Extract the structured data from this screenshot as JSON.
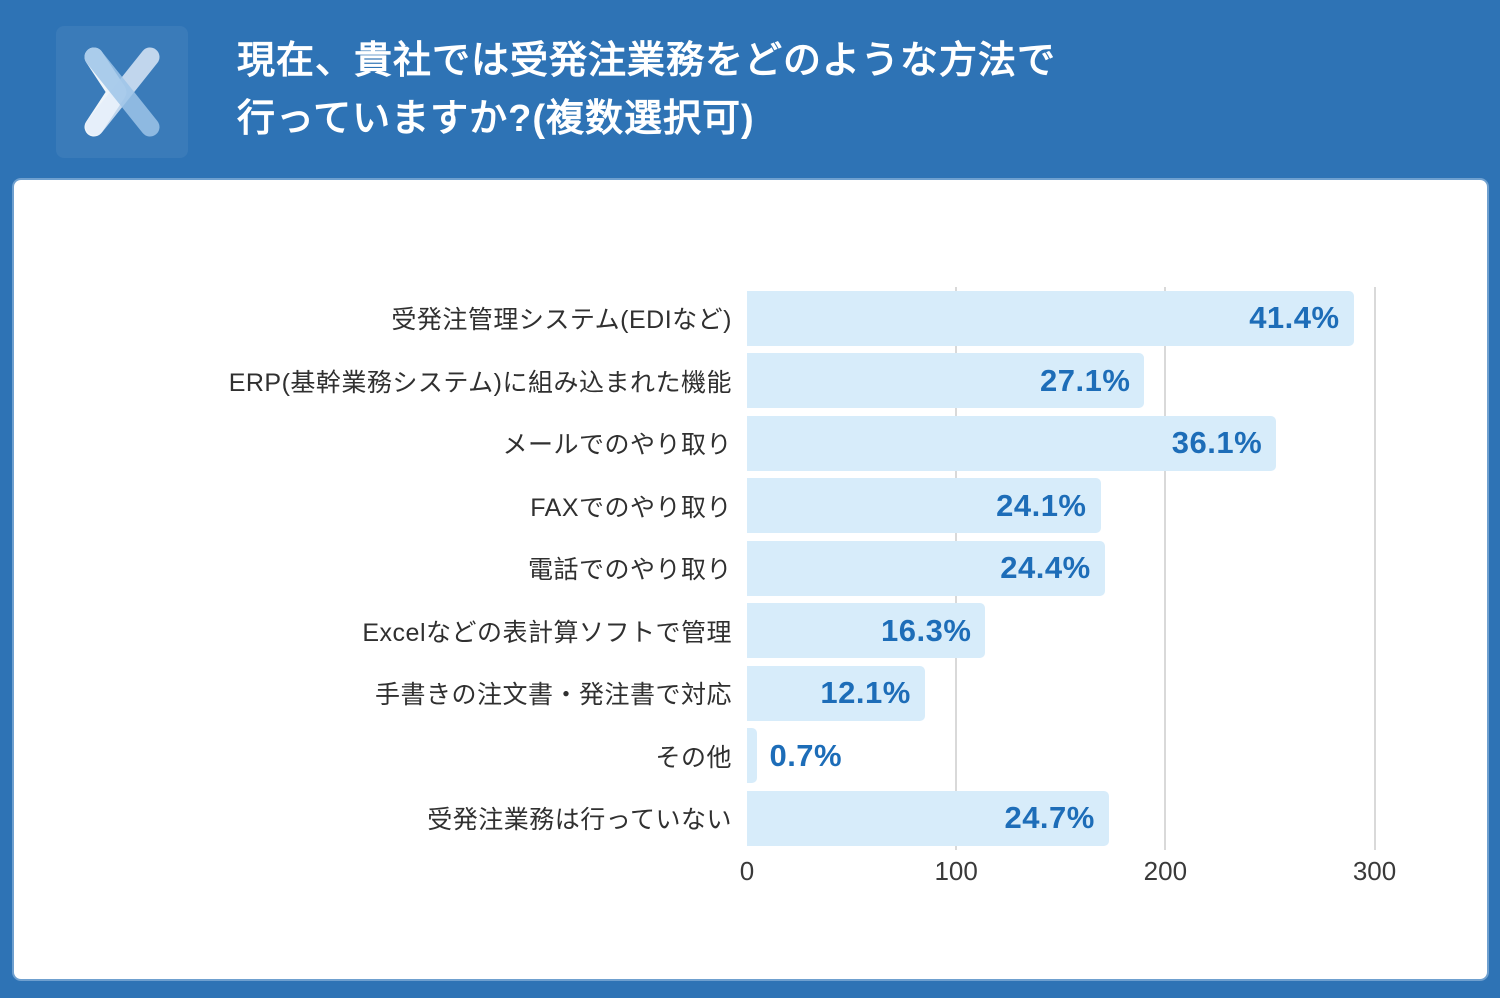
{
  "header": {
    "logo": "x-mark-logo",
    "title_line1": "現在、貴社では受発注業務をどのような方法で",
    "title_line2": "行っていますか?(複数選択可)"
  },
  "colors": {
    "page_background": "#2e73b5",
    "card_background": "#ffffff",
    "bar_fill": "#d7ecfa",
    "value_text": "#1d6db8",
    "category_text": "#303030",
    "tick_text": "#3a3a3a",
    "gridline": "#d9d9d9",
    "title_text": "#ffffff"
  },
  "chart_data": {
    "type": "bar",
    "orientation": "horizontal",
    "title": "",
    "xlabel": "",
    "ylabel": "",
    "grid": "vertical gridlines on, behind bars",
    "legend_position": "none",
    "categories": [
      "受発注管理システム(EDIなど)",
      "ERP(基幹業務システム)に組み込まれた機能",
      "メールでのやり取り",
      "FAXでのやり取り",
      "電話でのやり取り",
      "Excelなどの表計算ソフトで管理",
      "手書きの注文書・発注書で対応",
      "その他",
      "受発注業務は行っていない"
    ],
    "values_percent": [
      41.4,
      27.1,
      36.1,
      24.1,
      24.4,
      16.3,
      12.1,
      0.7,
      24.7
    ],
    "value_labels": [
      "41.4%",
      "27.1%",
      "36.1%",
      "24.1%",
      "24.4%",
      "16.3%",
      "12.1%",
      "0.7%",
      "24.7%"
    ],
    "bar_lengths_axis_units": [
      290,
      190,
      253,
      169,
      171,
      114,
      85,
      5,
      173
    ],
    "x_ticks": [
      0,
      100,
      200,
      300
    ],
    "xlim": [
      0,
      327
    ]
  }
}
